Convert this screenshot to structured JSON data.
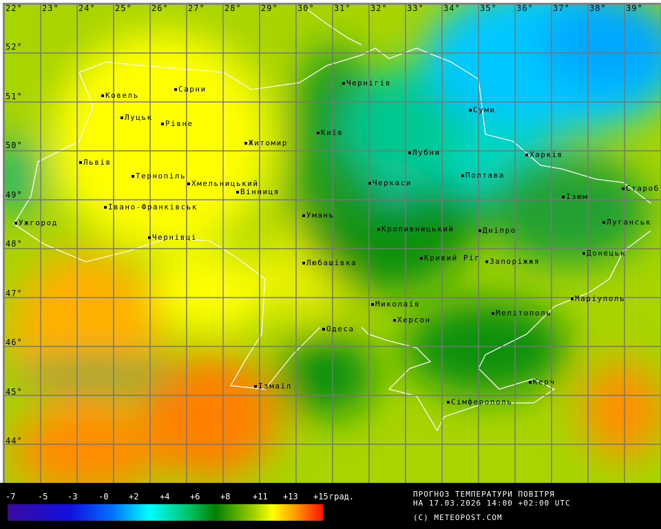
{
  "map": {
    "longitude_labels": [
      "22°",
      "23°",
      "24°",
      "25°",
      "26°",
      "27°",
      "28°",
      "29°",
      "30°",
      "31°",
      "32°",
      "33°",
      "34°",
      "35°",
      "36°",
      "37°",
      "38°",
      "39°"
    ],
    "latitude_labels": [
      "52°",
      "51°",
      "50°",
      "49°",
      "48°",
      "47°",
      "46°",
      "45°",
      "44°"
    ],
    "cities": [
      "Ковель",
      "Сарни",
      "Чернігів",
      "Суми",
      "Луцьк",
      "Рівне",
      "Київ",
      "Житомир",
      "Львів",
      "Лубни",
      "Харків",
      "Тернопіль",
      "Хмельницький",
      "Вінниця",
      "Черкаси",
      "Полтава",
      "Ізюм",
      "Староб",
      "Ужгород",
      "Івано-Франківськ",
      "Умань",
      "Кропивницький",
      "Дніпро",
      "Луганськ",
      "Чернівці",
      "Донецьк",
      "Любашівка",
      "Кривий Ріг",
      "Запоріжжя",
      "Миколаїв",
      "Херсон",
      "Маріуполь",
      "Мелітополь",
      "Одеса",
      "Ізмаїл",
      "Керч",
      "Сімферополь"
    ]
  },
  "legend": {
    "ticks": [
      "-7",
      "-5",
      "-3",
      "-0",
      "+2",
      "+4",
      "+6",
      "+8",
      "+11",
      "+13",
      "+15"
    ],
    "unit": "град.",
    "colors": [
      "#3a0aa0",
      "#1010e0",
      "#0070ff",
      "#00ffff",
      "#00c060",
      "#008000",
      "#a0d000",
      "#ffff00",
      "#ff9000",
      "#ff1000"
    ]
  },
  "info": {
    "title": "ПРОГНОЗ ТЕМПЕРАТУРИ ПОВІТРЯ",
    "datetime": "НА 17.03.2026 14:00 +02:00 UTC",
    "copyright": "(C) METEOPOST.COM"
  }
}
